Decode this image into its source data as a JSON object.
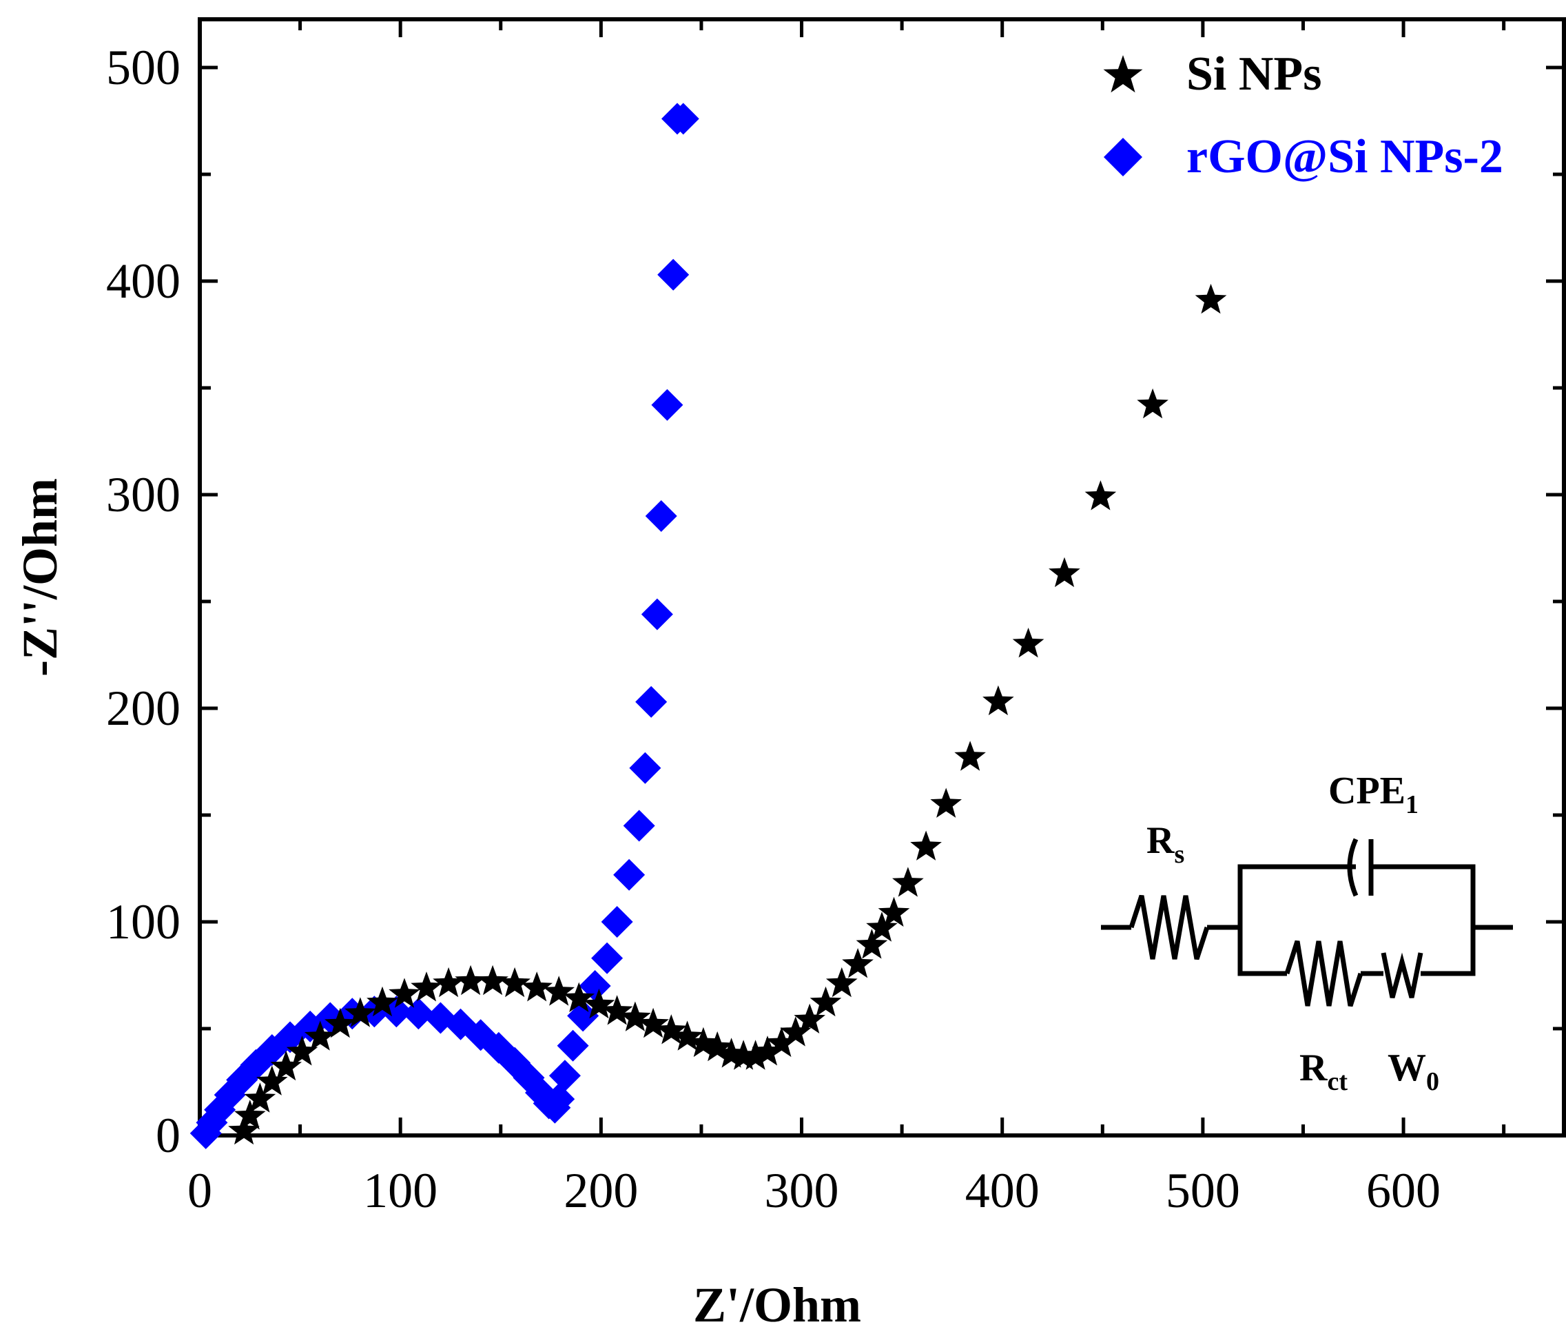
{
  "chart_data": {
    "type": "scatter",
    "title": "",
    "xlabel": "Z'/Ohm",
    "ylabel": "-Z''/Ohm",
    "xlim": [
      0,
      680
    ],
    "ylim": [
      0,
      525
    ],
    "xticks": [
      "0",
      "100",
      "200",
      "300",
      "400",
      "500",
      "600"
    ],
    "yticks": [
      "0",
      "100",
      "200",
      "300",
      "400",
      "500"
    ],
    "legend_position": "top-right",
    "series": [
      {
        "name": "Si NPs",
        "marker": "star",
        "color": "#000000",
        "x": [
          22,
          25,
          30,
          36,
          43,
          51,
          60,
          70,
          80,
          91,
          102,
          113,
          124,
          135,
          146,
          157,
          168,
          179,
          189,
          199,
          208,
          217,
          226,
          235,
          243,
          251,
          258,
          265,
          271,
          277,
          283,
          290,
          297,
          304,
          312,
          320,
          328,
          335,
          340,
          346,
          353,
          362,
          372,
          384,
          398,
          413,
          431,
          449,
          475,
          504
        ],
        "y": [
          2,
          9,
          17,
          25,
          32,
          39,
          46,
          52,
          57,
          62,
          66,
          69,
          71,
          72,
          72,
          71,
          69,
          67,
          64,
          61,
          58,
          55,
          52,
          49,
          46,
          43,
          41,
          38,
          37,
          37,
          39,
          43,
          48,
          54,
          62,
          71,
          80,
          89,
          97,
          104,
          118,
          135,
          155,
          177,
          203,
          230,
          263,
          299,
          342,
          391
        ]
      },
      {
        "name": "rGO@Si NPs-2",
        "marker": "diamond",
        "color": "#0000ff",
        "x": [
          3,
          6,
          10,
          15,
          21,
          28,
          36,
          45,
          55,
          65,
          76,
          87,
          98,
          109,
          120,
          130,
          140,
          149,
          157,
          164,
          170,
          174,
          177,
          179,
          182,
          186,
          191,
          197,
          203,
          208,
          214,
          219,
          222,
          225,
          228,
          230,
          233,
          236,
          238,
          241
        ],
        "y": [
          1,
          6,
          12,
          19,
          26,
          33,
          40,
          46,
          51,
          55,
          57,
          58,
          58,
          57,
          55,
          52,
          47,
          41,
          34,
          27,
          20,
          15,
          13,
          17,
          28,
          42,
          56,
          70,
          83,
          100,
          122,
          145,
          172,
          203,
          244,
          290,
          342,
          403,
          476,
          476
        ]
      }
    ]
  },
  "legend": {
    "items": [
      {
        "label": "Si NPs",
        "color": "#000000"
      },
      {
        "label": "rGO@Si NPs-2",
        "color": "#0000ff"
      }
    ]
  },
  "circuit": {
    "rs_main": "R",
    "rs_sub": "s",
    "cpe_main": "CPE",
    "cpe_sub": "1",
    "rct_main": "R",
    "rct_sub": "ct",
    "w_main": "W",
    "w_sub": "0"
  }
}
